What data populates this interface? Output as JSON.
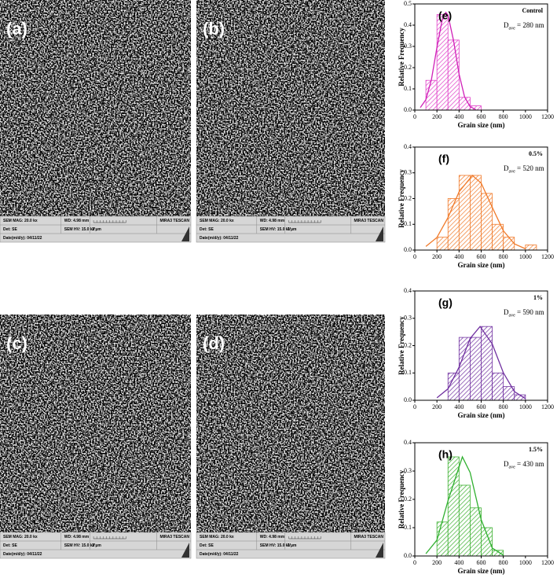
{
  "images": [
    {
      "label": "(a)",
      "mag": "SEM MAG: 20.0 kx",
      "wd": "WD: 4.98 mm",
      "brand": "MIRA3 TESCAN",
      "det": "Det: SE",
      "hv": "SEM HV: 15.0 kV",
      "scale": "2 μm",
      "date": "Date(m/d/y): 04/11/22"
    },
    {
      "label": "(b)",
      "mag": "SEM MAG: 20.0 kx",
      "wd": "WD: 4.98 mm",
      "brand": "MIRA3 TESCAN",
      "det": "Det: SE",
      "hv": "SEM HV: 15.0 kV",
      "scale": "2 μm",
      "date": "Date(m/d/y): 04/11/22"
    },
    {
      "label": "(c)",
      "mag": "SEM MAG: 20.0 kx",
      "wd": "WD: 4.98 mm",
      "brand": "MIRA3 TESCAN",
      "det": "Det: SE",
      "hv": "SEM HV: 15.0 kV",
      "scale": "2 μm",
      "date": "Date(m/d/y): 04/11/22"
    },
    {
      "label": "(d)",
      "mag": "SEM MAG: 20.0 kx",
      "wd": "WD: 4.98 mm",
      "brand": "MIRA3 TESCAN",
      "det": "Det: SE",
      "hv": "SEM HV: 15.0 kV",
      "scale": "2 μm",
      "date": "Date(m/d/y): 04/11/22"
    }
  ],
  "chart_data": [
    {
      "type": "histogram",
      "panel_label": "(e)",
      "condition": "Control",
      "annotation_symbol": "D",
      "annotation_subscript": "ave",
      "annotation_text": "= 280 nm",
      "xlabel": "Grain size (nm)",
      "ylabel": "Relative Frequency",
      "color": "#e040c8",
      "bins": [
        100,
        200,
        300,
        400,
        500,
        600
      ],
      "values": [
        0.14,
        0.45,
        0.33,
        0.06,
        0.02
      ],
      "fit": {
        "color": "#d020b8",
        "x": [
          50,
          100,
          150,
          200,
          250,
          280,
          300,
          350,
          400,
          450,
          500,
          550
        ],
        "values": [
          0.012,
          0.049,
          0.143,
          0.295,
          0.432,
          0.46,
          0.447,
          0.328,
          0.17,
          0.062,
          0.016,
          0.003
        ]
      },
      "xlim": [
        0,
        1200
      ],
      "xticks": [
        0,
        200,
        400,
        600,
        800,
        1000,
        1200
      ],
      "ylim": [
        0,
        0.5
      ],
      "yticks": [
        {
          "value": 0,
          "label": "0.0"
        },
        0.1,
        0.2,
        0.3,
        0.4,
        0.5
      ]
    },
    {
      "type": "histogram",
      "panel_label": "(f)",
      "condition": "0.5%",
      "annotation_symbol": "D",
      "annotation_subscript": "ave",
      "annotation_text": "= 520 nm",
      "xlabel": "Grain size (nm)",
      "ylabel": "Relative Frequency",
      "color": "#f07a2a",
      "bins": [
        200,
        300,
        400,
        500,
        600,
        700,
        800,
        900,
        1000,
        1100
      ],
      "values": [
        0.05,
        0.2,
        0.29,
        0.29,
        0.22,
        0.1,
        0.05,
        0,
        0.02
      ],
      "fit": {
        "color": "#f07a2a",
        "x": [
          100,
          200,
          300,
          400,
          520,
          600,
          700,
          800,
          900,
          1000
        ],
        "values": [
          0.014,
          0.049,
          0.126,
          0.226,
          0.29,
          0.26,
          0.166,
          0.075,
          0.024,
          0.005
        ]
      },
      "xlim": [
        0,
        1200
      ],
      "xticks": [
        0,
        200,
        400,
        600,
        800,
        1000,
        1200
      ],
      "ylim": [
        0,
        0.4
      ],
      "yticks": [
        {
          "value": 0,
          "label": "0.0"
        },
        0.1,
        0.2,
        0.3,
        0.4
      ]
    },
    {
      "type": "histogram",
      "panel_label": "(g)",
      "condition": "1%",
      "annotation_symbol": "D",
      "annotation_subscript": "ave",
      "annotation_text": "= 590 nm",
      "xlabel": "Grain size (nm)",
      "ylabel": "Relative Frequency",
      "color": "#7030a0",
      "bins": [
        300,
        400,
        500,
        600,
        700,
        800,
        900,
        1000
      ],
      "values": [
        0.1,
        0.23,
        0.23,
        0.27,
        0.1,
        0.05,
        0.02
      ],
      "fit": {
        "color": "#7030a0",
        "x": [
          200,
          300,
          400,
          500,
          590,
          700,
          800,
          900,
          1000
        ],
        "values": [
          0.009,
          0.042,
          0.121,
          0.226,
          0.27,
          0.206,
          0.101,
          0.032,
          0.006
        ]
      },
      "xlim": [
        0,
        1200
      ],
      "xticks": [
        0,
        200,
        400,
        600,
        800,
        1000,
        1200
      ],
      "ylim": [
        0,
        0.4
      ],
      "yticks": [
        {
          "value": 0,
          "label": "0.0"
        },
        0.1,
        0.2,
        0.3,
        0.4
      ]
    },
    {
      "type": "histogram",
      "panel_label": "(h)",
      "condition": "1.5%",
      "annotation_symbol": "D",
      "annotation_subscript": "ave",
      "annotation_text": "= 430 nm",
      "xlabel": "Grain size (nm)",
      "ylabel": "Relative Frequency",
      "color": "#3cb030",
      "bins": [
        200,
        300,
        400,
        500,
        600,
        700,
        800
      ],
      "values": [
        0.12,
        0.35,
        0.25,
        0.17,
        0.1,
        0.02
      ],
      "fit": {
        "color": "#30b030",
        "x": [
          100,
          200,
          300,
          430,
          500,
          600,
          700,
          800
        ],
        "values": [
          0.008,
          0.056,
          0.195,
          0.35,
          0.295,
          0.128,
          0.028,
          0.003
        ]
      },
      "xlim": [
        0,
        1200
      ],
      "xticks": [
        0,
        200,
        400,
        600,
        800,
        1000,
        1200
      ],
      "ylim": [
        0,
        0.4
      ],
      "yticks": [
        {
          "value": 0,
          "label": "0.0"
        },
        0.1,
        0.2,
        0.3,
        0.4
      ]
    }
  ]
}
